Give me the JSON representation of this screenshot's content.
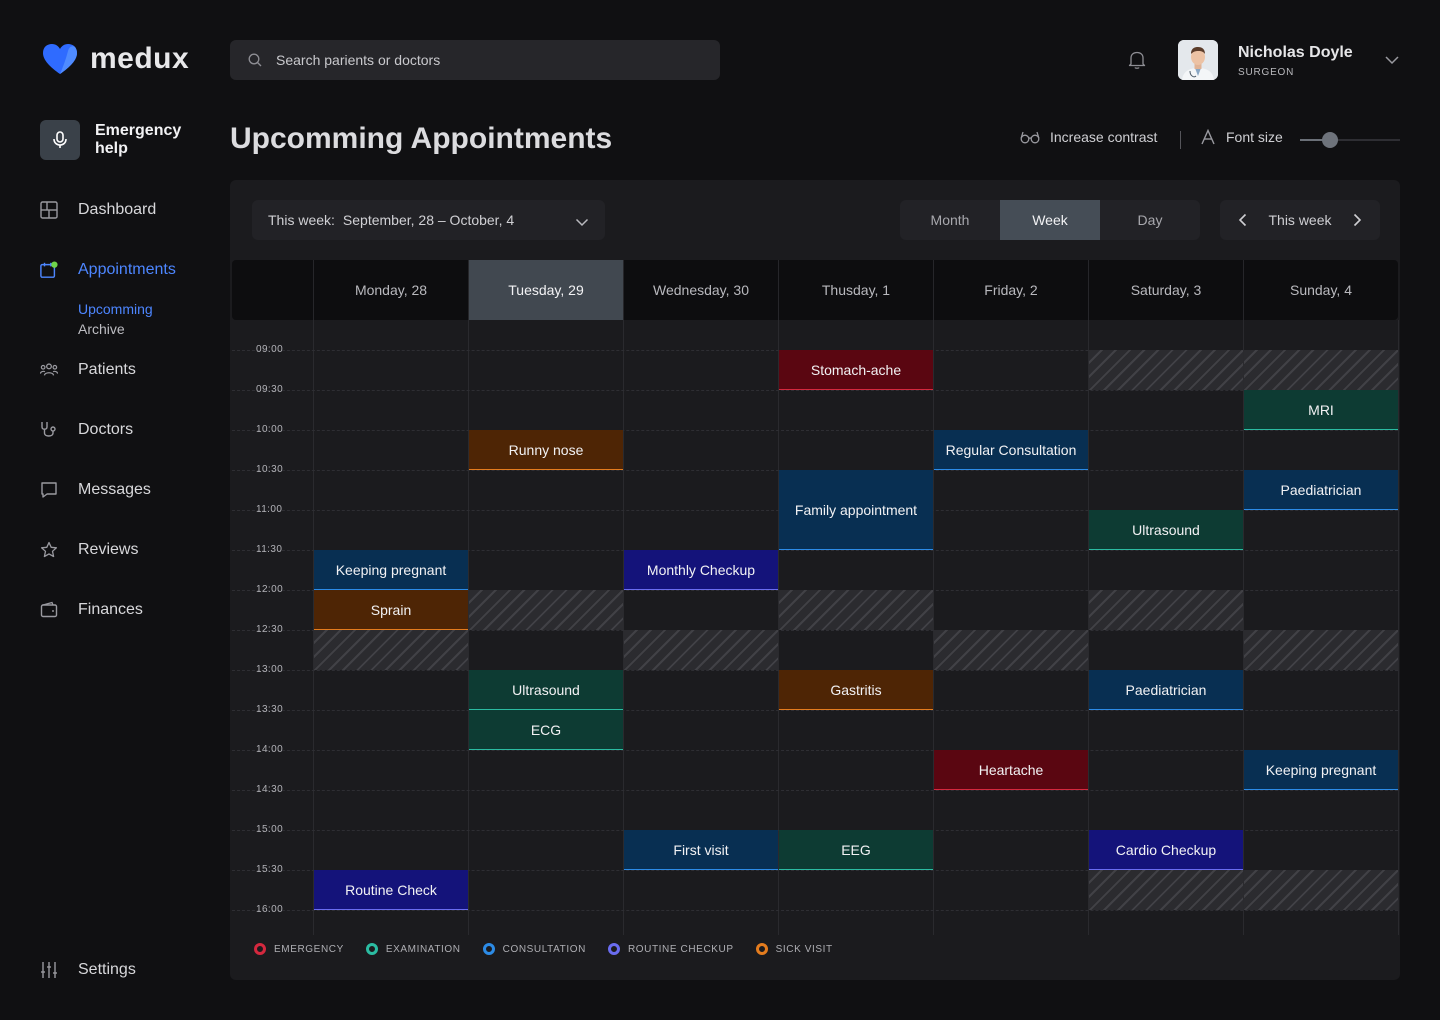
{
  "brand": {
    "name": "medux"
  },
  "emergency": {
    "label": "Emergency help"
  },
  "nav": {
    "items": [
      {
        "label": "Dashboard",
        "icon": "grid-icon"
      },
      {
        "label": "Appointments",
        "icon": "calendar-icon",
        "active": true
      },
      {
        "label": "Patients",
        "icon": "users-icon"
      },
      {
        "label": "Doctors",
        "icon": "stethoscope-icon"
      },
      {
        "label": "Messages",
        "icon": "message-icon"
      },
      {
        "label": "Reviews",
        "icon": "star-icon"
      },
      {
        "label": "Finances",
        "icon": "wallet-icon"
      }
    ],
    "sub": [
      {
        "label": "Upcomming",
        "active": true
      },
      {
        "label": "Archive"
      }
    ],
    "settings": "Settings"
  },
  "search": {
    "placeholder": "Search parients or doctors"
  },
  "user": {
    "name": "Nicholas Doyle",
    "role": "SURGEON"
  },
  "page": {
    "title": "Upcomming Appointments"
  },
  "accessibility": {
    "contrast": "Increase contrast",
    "font_size": "Font size",
    "font_level": 0.3
  },
  "calendar": {
    "week_label": "This week:",
    "week_range": "September, 28 – October, 4",
    "views": [
      "Month",
      "Week",
      "Day"
    ],
    "active_view": "Week",
    "nav_label": "This week",
    "days": [
      "Monday, 28",
      "Tuesday, 29",
      "Wednesday, 30",
      "Thusday, 1",
      "Friday, 2",
      "Saturday, 3",
      "Sunday, 4"
    ],
    "active_day": 1,
    "times": [
      "09:00",
      "09:30",
      "10:00",
      "10:30",
      "11:00",
      "11:30",
      "12:00",
      "12:30",
      "13:00",
      "13:30",
      "14:00",
      "14:30",
      "15:00",
      "15:30",
      "16:00"
    ],
    "blocked": [
      {
        "day": 5,
        "start": "09:00",
        "end": "09:30"
      },
      {
        "day": 6,
        "start": "09:00",
        "end": "09:30"
      },
      {
        "day": 1,
        "start": "12:00",
        "end": "12:30"
      },
      {
        "day": 3,
        "start": "12:00",
        "end": "12:30"
      },
      {
        "day": 5,
        "start": "12:00",
        "end": "12:30"
      },
      {
        "day": 0,
        "start": "12:30",
        "end": "13:00"
      },
      {
        "day": 2,
        "start": "12:30",
        "end": "13:00"
      },
      {
        "day": 4,
        "start": "12:30",
        "end": "13:00"
      },
      {
        "day": 6,
        "start": "12:30",
        "end": "13:00"
      },
      {
        "day": 5,
        "start": "15:30",
        "end": "16:00"
      },
      {
        "day": 6,
        "start": "15:30",
        "end": "16:00"
      }
    ],
    "events": [
      {
        "day": 3,
        "start": "09:00",
        "end": "09:30",
        "title": "Stomach-ache",
        "type": "emergency"
      },
      {
        "day": 6,
        "start": "09:30",
        "end": "10:00",
        "title": "MRI",
        "type": "examination"
      },
      {
        "day": 1,
        "start": "10:00",
        "end": "10:30",
        "title": "Runny nose",
        "type": "sick"
      },
      {
        "day": 4,
        "start": "10:00",
        "end": "10:30",
        "title": "Regular Consultation",
        "type": "consultation"
      },
      {
        "day": 3,
        "start": "10:30",
        "end": "11:30",
        "title": "Family appointment",
        "type": "consultation"
      },
      {
        "day": 6,
        "start": "10:30",
        "end": "11:00",
        "title": "Paediatrician",
        "type": "consultation"
      },
      {
        "day": 5,
        "start": "11:00",
        "end": "11:30",
        "title": "Ultrasound",
        "type": "examination"
      },
      {
        "day": 0,
        "start": "11:30",
        "end": "12:00",
        "title": "Keeping pregnant",
        "type": "consultation"
      },
      {
        "day": 2,
        "start": "11:30",
        "end": "12:00",
        "title": "Monthly Checkup",
        "type": "routine"
      },
      {
        "day": 0,
        "start": "12:00",
        "end": "12:30",
        "title": "Sprain",
        "type": "sick"
      },
      {
        "day": 1,
        "start": "13:00",
        "end": "13:30",
        "title": "Ultrasound",
        "type": "examination"
      },
      {
        "day": 3,
        "start": "13:00",
        "end": "13:30",
        "title": "Gastritis",
        "type": "sick"
      },
      {
        "day": 5,
        "start": "13:00",
        "end": "13:30",
        "title": "Paediatrician",
        "type": "consultation"
      },
      {
        "day": 1,
        "start": "13:30",
        "end": "14:00",
        "title": "ECG",
        "type": "examination"
      },
      {
        "day": 4,
        "start": "14:00",
        "end": "14:30",
        "title": "Heartache",
        "type": "emergency"
      },
      {
        "day": 6,
        "start": "14:00",
        "end": "14:30",
        "title": "Keeping pregnant",
        "type": "consultation"
      },
      {
        "day": 2,
        "start": "15:00",
        "end": "15:30",
        "title": "First visit",
        "type": "consultation"
      },
      {
        "day": 3,
        "start": "15:00",
        "end": "15:30",
        "title": "EEG",
        "type": "examination"
      },
      {
        "day": 5,
        "start": "15:00",
        "end": "15:30",
        "title": "Cardio Checkup",
        "type": "routine"
      },
      {
        "day": 0,
        "start": "15:30",
        "end": "16:00",
        "title": "Routine Check",
        "type": "routine"
      }
    ]
  },
  "legend": [
    {
      "label": "EMERGENCY",
      "color": "#d4283e"
    },
    {
      "label": "EXAMINATION",
      "color": "#2bbca2"
    },
    {
      "label": "CONSULTATION",
      "color": "#2c8be6"
    },
    {
      "label": "ROUTINE CHECKUP",
      "color": "#6a6cf0"
    },
    {
      "label": "SICK VISIT",
      "color": "#e47c1e"
    }
  ]
}
